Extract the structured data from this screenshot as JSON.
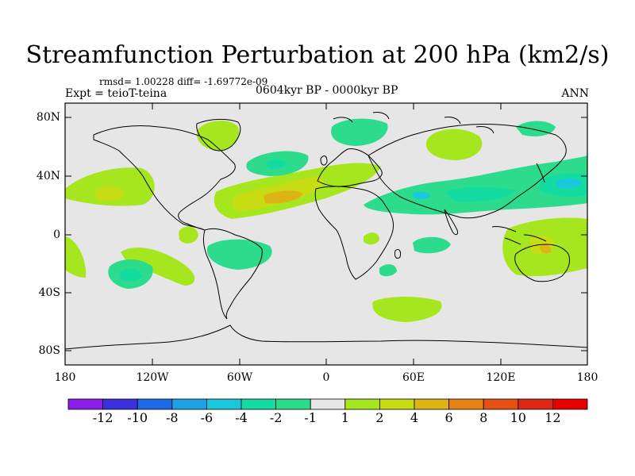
{
  "title": "Streamfunction Perturbation at 200 hPa (km2/s)",
  "stats_label": "rmsd= 1.00228 diff= -1.69772e-09",
  "experiment_label": "Expt = teioT-teina",
  "period_label": "0604kyr BP - 0000kyr BP",
  "season_label": "ANN",
  "axes": {
    "lat_ticks": [
      "80N",
      "40N",
      "0",
      "40S",
      "80S"
    ],
    "lon_ticks": [
      "180",
      "120W",
      "60W",
      "0",
      "60E",
      "120E",
      "180"
    ]
  },
  "colorbar": {
    "labels": [
      "-12",
      "-10",
      "-8",
      "-6",
      "-4",
      "-2",
      "-1",
      "1",
      "2",
      "4",
      "6",
      "8",
      "10",
      "12"
    ],
    "colors": [
      "#8b1ee6",
      "#3b30dc",
      "#1e6ae6",
      "#1ea0e6",
      "#19c8dc",
      "#14dca0",
      "#2cdc8c",
      "#e6e6e6",
      "#a6e61e",
      "#c8dc14",
      "#dcb414",
      "#e68214",
      "#e65014",
      "#dc2814",
      "#e60000"
    ]
  },
  "colors": {
    "map_background": "#e6e6e6",
    "coastline": "#000000"
  }
}
